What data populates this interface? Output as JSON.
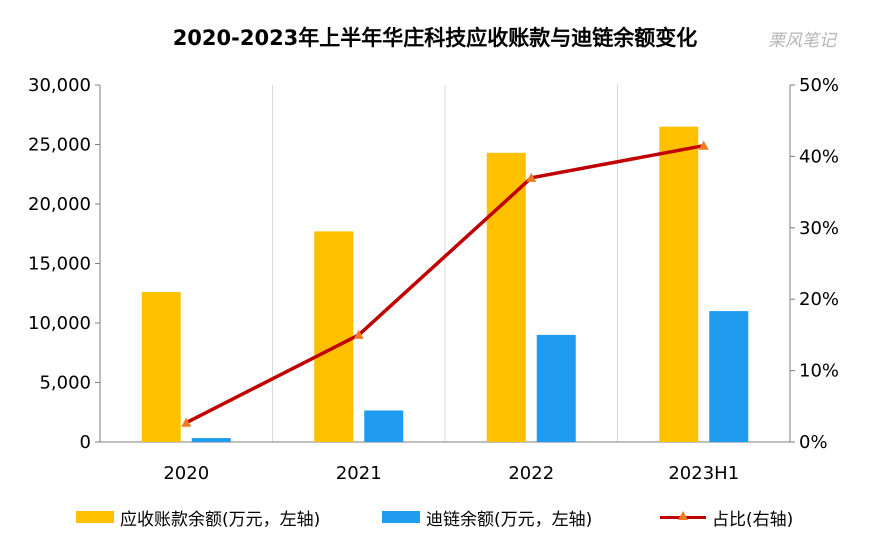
{
  "header": {
    "title": "2020-2023年上半年华庄科技应收账款与迪链余额变化",
    "watermark": "栗风笔记"
  },
  "colors": {
    "receivables": "#ffc000",
    "dilian": "#1f9bf0",
    "ratio_line": "#c00000",
    "ratio_marker": "#f07a22",
    "grid": "#d9d9d9",
    "axis": "#7f7f7f"
  },
  "chart_data": {
    "type": "bar",
    "categories": [
      "2020",
      "2021",
      "2022",
      "2023H1"
    ],
    "series": [
      {
        "name": "应收账款余额(万元，左轴)",
        "type": "bar",
        "axis": "left",
        "values": [
          12600,
          17700,
          24300,
          26500
        ]
      },
      {
        "name": "迪链余额(万元，左轴)",
        "type": "bar",
        "axis": "left",
        "values": [
          330,
          2650,
          9000,
          11000
        ]
      },
      {
        "name": "占比(右轴)",
        "type": "line",
        "axis": "right",
        "values": [
          0.027,
          0.15,
          0.37,
          0.415
        ]
      }
    ],
    "left_axis": {
      "ylim": [
        0,
        30000
      ],
      "ticks": [
        0,
        5000,
        10000,
        15000,
        20000,
        25000,
        30000
      ],
      "tick_labels": [
        "0",
        "5,000",
        "10,000",
        "15,000",
        "20,000",
        "25,000",
        "30,000"
      ]
    },
    "right_axis": {
      "ylim": [
        0,
        0.5
      ],
      "ticks": [
        0,
        0.1,
        0.2,
        0.3,
        0.4,
        0.5
      ],
      "tick_labels": [
        "0%",
        "10%",
        "20%",
        "30%",
        "40%",
        "50%"
      ]
    },
    "grid": "vertical",
    "legend_position": "bottom"
  }
}
